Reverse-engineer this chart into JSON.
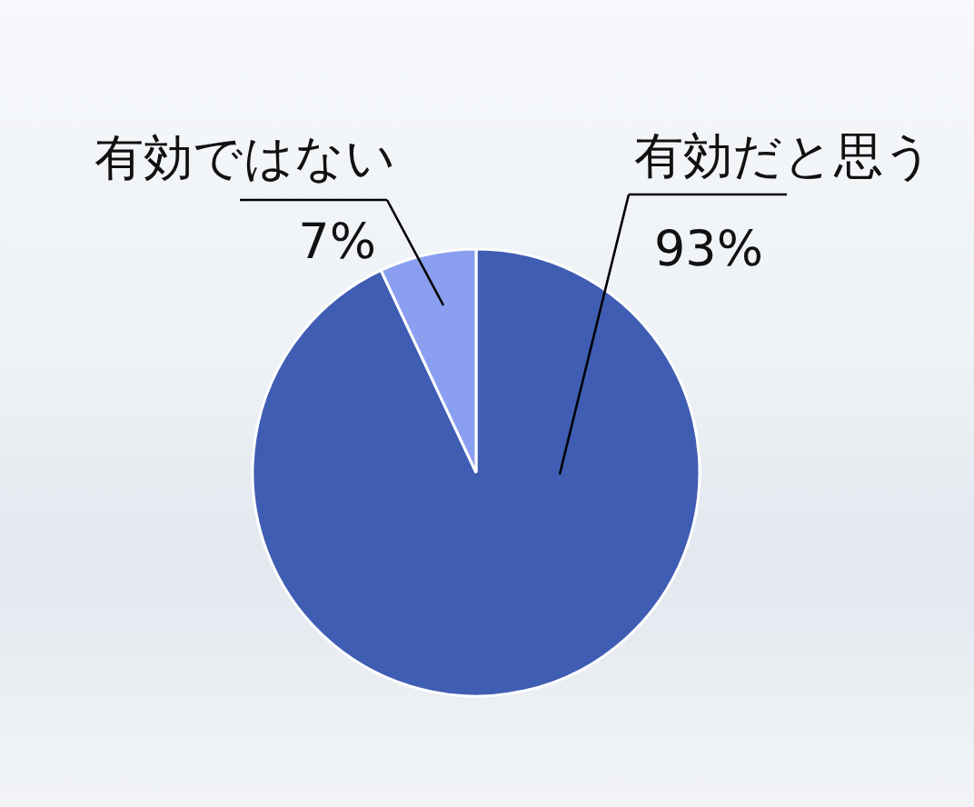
{
  "chart_data": {
    "type": "pie",
    "categories": [
      "有効だと思う",
      "有効ではない"
    ],
    "values": [
      93,
      7
    ],
    "colors": [
      "#3f5db3",
      "#8a9ff0"
    ],
    "value_labels": [
      "93%",
      "7%"
    ]
  }
}
